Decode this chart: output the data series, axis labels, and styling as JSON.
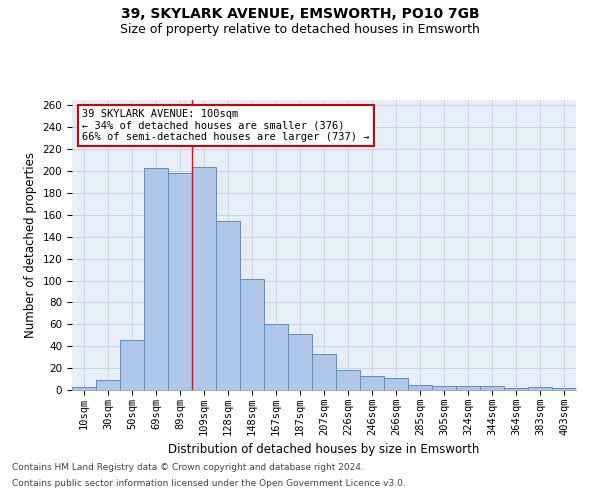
{
  "title": "39, SKYLARK AVENUE, EMSWORTH, PO10 7GB",
  "subtitle": "Size of property relative to detached houses in Emsworth",
  "xlabel": "Distribution of detached houses by size in Emsworth",
  "ylabel": "Number of detached properties",
  "categories": [
    "10sqm",
    "30sqm",
    "50sqm",
    "69sqm",
    "89sqm",
    "109sqm",
    "128sqm",
    "148sqm",
    "167sqm",
    "187sqm",
    "207sqm",
    "226sqm",
    "246sqm",
    "266sqm",
    "285sqm",
    "305sqm",
    "324sqm",
    "344sqm",
    "364sqm",
    "383sqm",
    "403sqm"
  ],
  "values": [
    3,
    9,
    46,
    203,
    198,
    204,
    154,
    101,
    60,
    51,
    33,
    18,
    13,
    11,
    5,
    4,
    4,
    4,
    2,
    3,
    2
  ],
  "bar_color": "#aec6e8",
  "bar_edge_color": "#5b8ec4",
  "bar_edge_width": 0.7,
  "grid_color": "#c8d4e8",
  "background_color": "#e8eef8",
  "annotation_box_text": "39 SKYLARK AVENUE: 100sqm\n← 34% of detached houses are smaller (376)\n66% of semi-detached houses are larger (737) →",
  "annotation_box_color": "#ffffff",
  "annotation_box_edge_color": "#cc0000",
  "property_line_x": 4.5,
  "footnote1": "Contains HM Land Registry data © Crown copyright and database right 2024.",
  "footnote2": "Contains public sector information licensed under the Open Government Licence v3.0.",
  "ylim": [
    0,
    265
  ],
  "yticks": [
    0,
    20,
    40,
    60,
    80,
    100,
    120,
    140,
    160,
    180,
    200,
    220,
    240,
    260
  ],
  "title_fontsize": 10,
  "subtitle_fontsize": 9,
  "axis_label_fontsize": 8.5,
  "tick_fontsize": 7.5,
  "annotation_fontsize": 7.5,
  "footnote_fontsize": 6.5
}
